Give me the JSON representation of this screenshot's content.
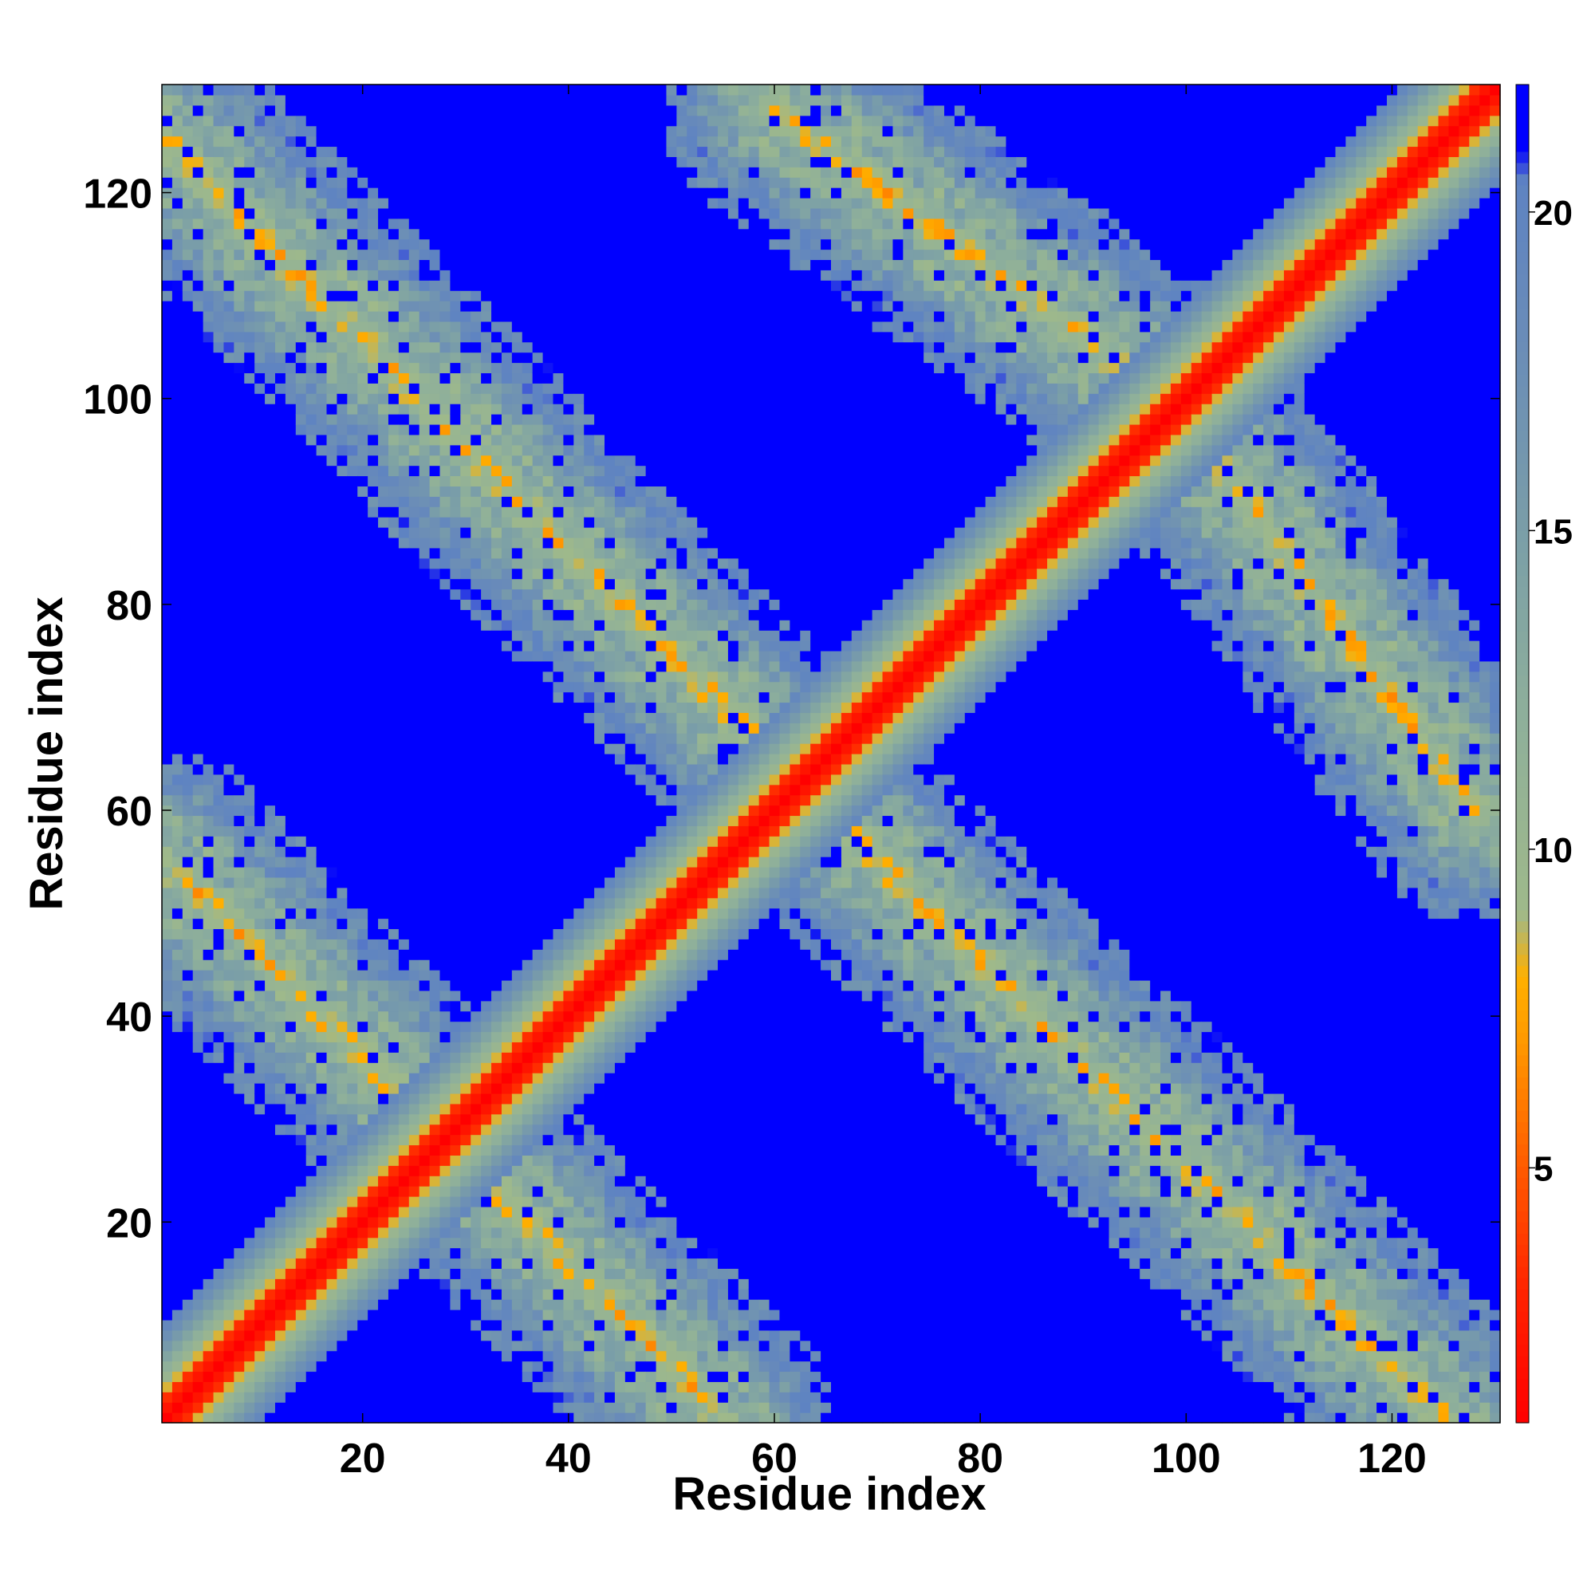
{
  "chart_data": {
    "type": "heatmap",
    "description_of_values": "residue-residue distance map, symmetric about the diagonal",
    "xlabel": "Residue index",
    "ylabel": "Residue index",
    "xlim": [
      1,
      130
    ],
    "ylim": [
      1,
      130
    ],
    "xticks": [
      20,
      40,
      60,
      80,
      100,
      120
    ],
    "yticks": [
      20,
      40,
      60,
      80,
      100,
      120
    ],
    "colorbar": {
      "range": [
        1,
        22
      ],
      "ticks": [
        5,
        10,
        15,
        20
      ],
      "stops": [
        {
          "v": 1,
          "color": "#ff0000"
        },
        {
          "v": 3,
          "color": "#ff2200"
        },
        {
          "v": 5,
          "color": "#ff5a00"
        },
        {
          "v": 7,
          "color": "#ff9900"
        },
        {
          "v": 8,
          "color": "#ffb000"
        },
        {
          "v": 9,
          "color": "#9fb98a"
        },
        {
          "v": 12,
          "color": "#8fb09a"
        },
        {
          "v": 15,
          "color": "#7a9ea8"
        },
        {
          "v": 18,
          "color": "#6a8cb8"
        },
        {
          "v": 20.5,
          "color": "#5e83c2"
        },
        {
          "v": 21,
          "color": "#0000ff"
        }
      ]
    },
    "grid": false,
    "legend": "colorbar-right",
    "n_residues": 130,
    "structure_bands": [
      {
        "name": "main-diagonal",
        "from": [
          1,
          1
        ],
        "to": [
          130,
          130
        ]
      },
      {
        "name": "antiparallel-lower-left",
        "from": [
          30,
          26
        ],
        "to": [
          55,
          1
        ]
      },
      {
        "name": "antiparallel-lower-mid",
        "from": [
          65,
          60
        ],
        "to": [
          125,
          1
        ]
      },
      {
        "name": "antiparallel-upper",
        "from": [
          100,
          98
        ],
        "to": [
          128,
          60
        ]
      }
    ]
  }
}
